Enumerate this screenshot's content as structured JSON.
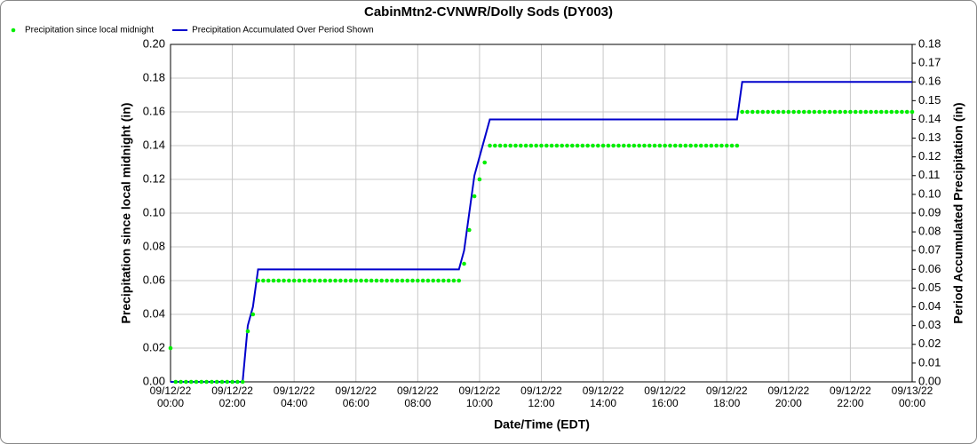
{
  "chart_data": {
    "type": "scatter-line",
    "title": "CabinMtn2-CVNWR/Dolly Sods (DY003)",
    "x_label": "Date/Time (EDT)",
    "y_label": "Precipitation since local midnight (in)",
    "y2_label": "Period Accumulated Precipitation (in)",
    "x": [
      "09/12/22 00:00",
      "09/12/22 00:10",
      "09/12/22 00:20",
      "09/12/22 00:30",
      "09/12/22 00:40",
      "09/12/22 00:50",
      "09/12/22 01:00",
      "09/12/22 01:10",
      "09/12/22 01:20",
      "09/12/22 01:30",
      "09/12/22 01:40",
      "09/12/22 01:50",
      "09/12/22 02:00",
      "09/12/22 02:10",
      "09/12/22 02:20",
      "09/12/22 02:30",
      "09/12/22 02:40",
      "09/12/22 02:50",
      "09/12/22 03:00",
      "09/12/22 03:10",
      "09/12/22 03:20",
      "09/12/22 03:30",
      "09/12/22 03:40",
      "09/12/22 03:50",
      "09/12/22 04:00",
      "09/12/22 04:10",
      "09/12/22 04:20",
      "09/12/22 04:30",
      "09/12/22 04:40",
      "09/12/22 04:50",
      "09/12/22 05:00",
      "09/12/22 05:10",
      "09/12/22 05:20",
      "09/12/22 05:30",
      "09/12/22 05:40",
      "09/12/22 05:50",
      "09/12/22 06:00",
      "09/12/22 06:10",
      "09/12/22 06:20",
      "09/12/22 06:30",
      "09/12/22 06:40",
      "09/12/22 06:50",
      "09/12/22 07:00",
      "09/12/22 07:10",
      "09/12/22 07:20",
      "09/12/22 07:30",
      "09/12/22 07:40",
      "09/12/22 07:50",
      "09/12/22 08:00",
      "09/12/22 08:10",
      "09/12/22 08:20",
      "09/12/22 08:30",
      "09/12/22 08:40",
      "09/12/22 08:50",
      "09/12/22 09:00",
      "09/12/22 09:10",
      "09/12/22 09:20",
      "09/12/22 09:30",
      "09/12/22 09:40",
      "09/12/22 09:50",
      "09/12/22 10:00",
      "09/12/22 10:10",
      "09/12/22 10:20",
      "09/12/22 10:30",
      "09/12/22 10:40",
      "09/12/22 10:50",
      "09/12/22 11:00",
      "09/12/22 11:10",
      "09/12/22 11:20",
      "09/12/22 11:30",
      "09/12/22 11:40",
      "09/12/22 11:50",
      "09/12/22 12:00",
      "09/12/22 12:10",
      "09/12/22 12:20",
      "09/12/22 12:30",
      "09/12/22 12:40",
      "09/12/22 12:50",
      "09/12/22 13:00",
      "09/12/22 13:10",
      "09/12/22 13:20",
      "09/12/22 13:30",
      "09/12/22 13:40",
      "09/12/22 13:50",
      "09/12/22 14:00",
      "09/12/22 14:10",
      "09/12/22 14:20",
      "09/12/22 14:30",
      "09/12/22 14:40",
      "09/12/22 14:50",
      "09/12/22 15:00",
      "09/12/22 15:10",
      "09/12/22 15:20",
      "09/12/22 15:30",
      "09/12/22 15:40",
      "09/12/22 15:50",
      "09/12/22 16:00",
      "09/12/22 16:10",
      "09/12/22 16:20",
      "09/12/22 16:30",
      "09/12/22 16:40",
      "09/12/22 16:50",
      "09/12/22 17:00",
      "09/12/22 17:10",
      "09/12/22 17:20",
      "09/12/22 17:30",
      "09/12/22 17:40",
      "09/12/22 17:50",
      "09/12/22 18:00",
      "09/12/22 18:10",
      "09/12/22 18:20",
      "09/12/22 18:30",
      "09/12/22 18:40",
      "09/12/22 18:50",
      "09/12/22 19:00",
      "09/12/22 19:10",
      "09/12/22 19:20",
      "09/12/22 19:30",
      "09/12/22 19:40",
      "09/12/22 19:50",
      "09/12/22 20:00",
      "09/12/22 20:10",
      "09/12/22 20:20",
      "09/12/22 20:30",
      "09/12/22 20:40",
      "09/12/22 20:50",
      "09/12/22 21:00",
      "09/12/22 21:10",
      "09/12/22 21:20",
      "09/12/22 21:30",
      "09/12/22 21:40",
      "09/12/22 21:50",
      "09/12/22 22:00",
      "09/12/22 22:10",
      "09/12/22 22:20",
      "09/12/22 22:30",
      "09/12/22 22:40",
      "09/12/22 22:50",
      "09/12/22 23:00",
      "09/12/22 23:10",
      "09/12/22 23:20",
      "09/12/22 23:30",
      "09/12/22 23:40",
      "09/12/22 23:50",
      "09/13/22 00:00"
    ],
    "series": [
      {
        "name": "Precipitation since local midnight",
        "kind": "scatter",
        "color": "#00ee00",
        "axis": "y",
        "values": [
          0.02,
          0,
          0,
          0,
          0,
          0,
          0,
          0,
          0,
          0,
          0,
          0,
          0,
          0,
          0,
          0.03,
          0.04,
          0.06,
          0.06,
          0.06,
          0.06,
          0.06,
          0.06,
          0.06,
          0.06,
          0.06,
          0.06,
          0.06,
          0.06,
          0.06,
          0.06,
          0.06,
          0.06,
          0.06,
          0.06,
          0.06,
          0.06,
          0.06,
          0.06,
          0.06,
          0.06,
          0.06,
          0.06,
          0.06,
          0.06,
          0.06,
          0.06,
          0.06,
          0.06,
          0.06,
          0.06,
          0.06,
          0.06,
          0.06,
          0.06,
          0.06,
          0.06,
          0.07,
          0.09,
          0.11,
          0.12,
          0.13,
          0.14,
          0.14,
          0.14,
          0.14,
          0.14,
          0.14,
          0.14,
          0.14,
          0.14,
          0.14,
          0.14,
          0.14,
          0.14,
          0.14,
          0.14,
          0.14,
          0.14,
          0.14,
          0.14,
          0.14,
          0.14,
          0.14,
          0.14,
          0.14,
          0.14,
          0.14,
          0.14,
          0.14,
          0.14,
          0.14,
          0.14,
          0.14,
          0.14,
          0.14,
          0.14,
          0.14,
          0.14,
          0.14,
          0.14,
          0.14,
          0.14,
          0.14,
          0.14,
          0.14,
          0.14,
          0.14,
          0.14,
          0.14,
          0.14,
          0.16,
          0.16,
          0.16,
          0.16,
          0.16,
          0.16,
          0.16,
          0.16,
          0.16,
          0.16,
          0.16,
          0.16,
          0.16,
          0.16,
          0.16,
          0.16,
          0.16,
          0.16,
          0.16,
          0.16,
          0.16,
          0.16,
          0.16,
          0.16,
          0.16,
          0.16,
          0.16,
          0.16,
          0.16,
          0.16,
          0.16,
          0.16,
          0.16,
          0.16
        ]
      },
      {
        "name": "Precipitation Accumulated Over Period Shown",
        "kind": "line",
        "color": "#0000cc",
        "axis": "y2",
        "values": [
          0,
          0,
          0,
          0,
          0,
          0,
          0,
          0,
          0,
          0,
          0,
          0,
          0,
          0,
          0,
          0.03,
          0.04,
          0.06,
          0.06,
          0.06,
          0.06,
          0.06,
          0.06,
          0.06,
          0.06,
          0.06,
          0.06,
          0.06,
          0.06,
          0.06,
          0.06,
          0.06,
          0.06,
          0.06,
          0.06,
          0.06,
          0.06,
          0.06,
          0.06,
          0.06,
          0.06,
          0.06,
          0.06,
          0.06,
          0.06,
          0.06,
          0.06,
          0.06,
          0.06,
          0.06,
          0.06,
          0.06,
          0.06,
          0.06,
          0.06,
          0.06,
          0.06,
          0.07,
          0.09,
          0.11,
          0.12,
          0.13,
          0.14,
          0.14,
          0.14,
          0.14,
          0.14,
          0.14,
          0.14,
          0.14,
          0.14,
          0.14,
          0.14,
          0.14,
          0.14,
          0.14,
          0.14,
          0.14,
          0.14,
          0.14,
          0.14,
          0.14,
          0.14,
          0.14,
          0.14,
          0.14,
          0.14,
          0.14,
          0.14,
          0.14,
          0.14,
          0.14,
          0.14,
          0.14,
          0.14,
          0.14,
          0.14,
          0.14,
          0.14,
          0.14,
          0.14,
          0.14,
          0.14,
          0.14,
          0.14,
          0.14,
          0.14,
          0.14,
          0.14,
          0.14,
          0.14,
          0.16,
          0.16,
          0.16,
          0.16,
          0.16,
          0.16,
          0.16,
          0.16,
          0.16,
          0.16,
          0.16,
          0.16,
          0.16,
          0.16,
          0.16,
          0.16,
          0.16,
          0.16,
          0.16,
          0.16,
          0.16,
          0.16,
          0.16,
          0.16,
          0.16,
          0.16,
          0.16,
          0.16,
          0.16,
          0.16,
          0.16,
          0.16,
          0.16,
          0.16
        ]
      }
    ],
    "xlim": [
      "09/12/22 00:00",
      "09/13/22 00:00"
    ],
    "xticks": [
      {
        "value": "09/12/22 00:00",
        "label": "09/12/22\n00:00"
      },
      {
        "value": "09/12/22 02:00",
        "label": "09/12/22\n02:00"
      },
      {
        "value": "09/12/22 04:00",
        "label": "09/12/22\n04:00"
      },
      {
        "value": "09/12/22 06:00",
        "label": "09/12/22\n06:00"
      },
      {
        "value": "09/12/22 08:00",
        "label": "09/12/22\n08:00"
      },
      {
        "value": "09/12/22 10:00",
        "label": "09/12/22\n10:00"
      },
      {
        "value": "09/12/22 12:00",
        "label": "09/12/22\n12:00"
      },
      {
        "value": "09/12/22 14:00",
        "label": "09/12/22\n14:00"
      },
      {
        "value": "09/12/22 16:00",
        "label": "09/12/22\n16:00"
      },
      {
        "value": "09/12/22 18:00",
        "label": "09/12/22\n18:00"
      },
      {
        "value": "09/12/22 20:00",
        "label": "09/12/22\n20:00"
      },
      {
        "value": "09/12/22 22:00",
        "label": "09/12/22\n22:00"
      },
      {
        "value": "09/13/22 00:00",
        "label": "09/13/22\n00:00"
      }
    ],
    "ylim": [
      0,
      0.2
    ],
    "yticks": [
      {
        "value": 0,
        "label": "0.00"
      },
      {
        "value": 0.02,
        "label": "0.02"
      },
      {
        "value": 0.04,
        "label": "0.04"
      },
      {
        "value": 0.06,
        "label": "0.06"
      },
      {
        "value": 0.08,
        "label": "0.08"
      },
      {
        "value": 0.1,
        "label": "0.10"
      },
      {
        "value": 0.12,
        "label": "0.12"
      },
      {
        "value": 0.14,
        "label": "0.14"
      },
      {
        "value": 0.16,
        "label": "0.16"
      },
      {
        "value": 0.18,
        "label": "0.18"
      },
      {
        "value": 0.2,
        "label": "0.20"
      }
    ],
    "y2lim": [
      0,
      0.18
    ],
    "y2ticks": [
      {
        "value": 0,
        "label": "0.00"
      },
      {
        "value": 0.01,
        "label": "0.01"
      },
      {
        "value": 0.02,
        "label": "0.02"
      },
      {
        "value": 0.03,
        "label": "0.03"
      },
      {
        "value": 0.04,
        "label": "0.04"
      },
      {
        "value": 0.05,
        "label": "0.05"
      },
      {
        "value": 0.06,
        "label": "0.06"
      },
      {
        "value": 0.07,
        "label": "0.07"
      },
      {
        "value": 0.08,
        "label": "0.08"
      },
      {
        "value": 0.09,
        "label": "0.09"
      },
      {
        "value": 0.1,
        "label": "0.10"
      },
      {
        "value": 0.11,
        "label": "0.11"
      },
      {
        "value": 0.12,
        "label": "0.12"
      },
      {
        "value": 0.13,
        "label": "0.13"
      },
      {
        "value": 0.14,
        "label": "0.14"
      },
      {
        "value": 0.15,
        "label": "0.15"
      },
      {
        "value": 0.16,
        "label": "0.16"
      },
      {
        "value": 0.17,
        "label": "0.17"
      },
      {
        "value": 0.18,
        "label": "0.18"
      }
    ],
    "grid": true,
    "legend": "top-left"
  }
}
